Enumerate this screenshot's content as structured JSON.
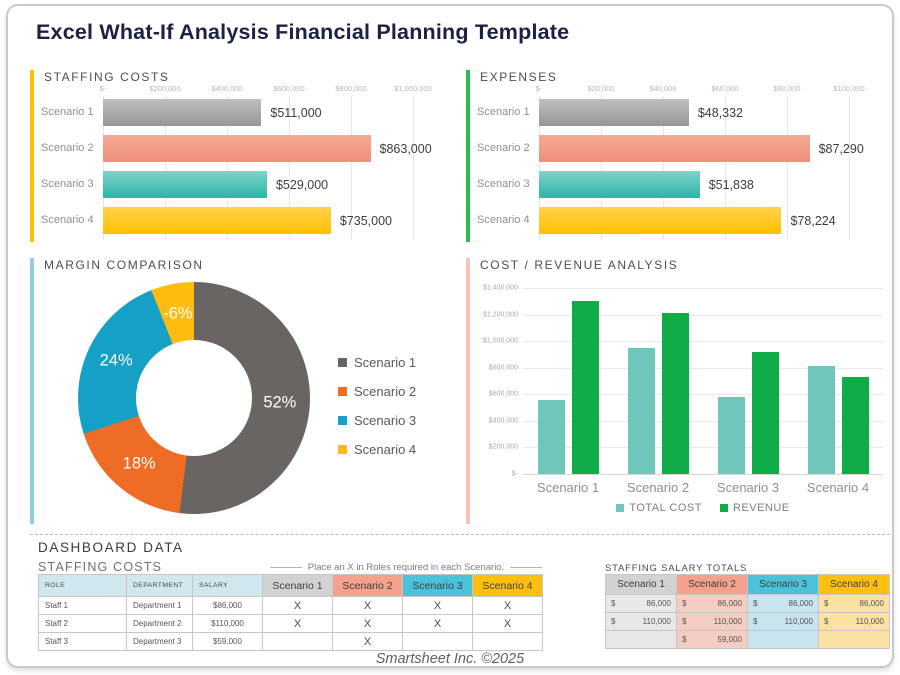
{
  "page_title": "Excel What-If Analysis Financial Planning Template",
  "footer_text": "Smartsheet Inc. ©2025",
  "colors": {
    "accent_staffing": "#ffc000",
    "accent_expenses": "#2eb84d",
    "accent_margin": "#8fcfdc",
    "accent_costrev": "#f8c3b4",
    "bar_gradients": [
      [
        "#c1bfbe",
        "#989595"
      ],
      [
        "#f4a895",
        "#ee8f7a"
      ],
      [
        "#7dd4c9",
        "#2cb4a7"
      ],
      [
        "#ffd24d",
        "#fec000"
      ]
    ]
  },
  "chart_data": [
    {
      "id": "staffing_costs",
      "type": "bar",
      "orientation": "horizontal",
      "title": "STAFFING COSTS",
      "categories": [
        "Scenario 1",
        "Scenario 2",
        "Scenario 3",
        "Scenario 4"
      ],
      "values": [
        511000,
        863000,
        529000,
        735000
      ],
      "value_labels": [
        "$511,000",
        "$863,000",
        "$529,000",
        "$735,000"
      ],
      "x_ticks": [
        "$-",
        "$200,000",
        "$400,000",
        "$600,000",
        "$800,000",
        "$1,000,000"
      ],
      "xlim": [
        0,
        1000000
      ],
      "grid": true
    },
    {
      "id": "expenses",
      "type": "bar",
      "orientation": "horizontal",
      "title": "EXPENSES",
      "categories": [
        "Scenario 1",
        "Scenario 2",
        "Scenario 3",
        "Scenario 4"
      ],
      "values": [
        48332,
        87290,
        51838,
        78224
      ],
      "value_labels": [
        "$48,332",
        "$87,290",
        "$51,838",
        "$78,224"
      ],
      "x_ticks": [
        "$-",
        "$20,000",
        "$40,000",
        "$60,000",
        "$80,000",
        "$100,000"
      ],
      "xlim": [
        0,
        100000
      ],
      "grid": true
    },
    {
      "id": "margin_comparison",
      "type": "pie",
      "subtype": "donut",
      "title": "MARGIN COMPARISON",
      "labels": [
        "Scenario 1",
        "Scenario 2",
        "Scenario 3",
        "Scenario 4"
      ],
      "values_pct": [
        52,
        18,
        24,
        -6
      ],
      "slice_labels": [
        "52%",
        "18%",
        "24%",
        "-6%"
      ],
      "slice_colors": [
        "#696562",
        "#ee6c23",
        "#16a0c5",
        "#fdbd10"
      ],
      "legend_position": "right"
    },
    {
      "id": "cost_revenue",
      "type": "bar",
      "orientation": "vertical",
      "title": "COST / REVENUE ANALYSIS",
      "categories": [
        "Scenario 1",
        "Scenario 2",
        "Scenario 3",
        "Scenario 4"
      ],
      "series": [
        {
          "name": "TOTAL COST",
          "color": "#6fc6ba",
          "values": [
            560000,
            950000,
            580000,
            815000
          ]
        },
        {
          "name": "REVENUE",
          "color": "#10ac47",
          "values": [
            1300000,
            1215000,
            920000,
            730000
          ]
        }
      ],
      "y_ticks": [
        "$-",
        "$200,000",
        "$400,000",
        "$600,000",
        "$800,000",
        "$1,000,000",
        "$1,200,000",
        "$1,400,000"
      ],
      "ylim": [
        0,
        1400000
      ],
      "grid": true,
      "legend_position": "bottom"
    }
  ],
  "dashboard": {
    "heading": "DASHBOARD DATA",
    "staffing_table": {
      "title": "STAFFING COSTS",
      "note": "Place an X in Roles required in each Scenario.",
      "plain_headers": [
        "ROLE",
        "DEPARTMENT",
        "SALARY"
      ],
      "scenario_headers": [
        "Scenario 1",
        "Scenario 2",
        "Scenario 3",
        "Scenario 4"
      ],
      "scenario_header_colors": [
        "#d2d2d2",
        "#f4a28e",
        "#4cc2da",
        "#fdc010"
      ],
      "rows": [
        {
          "role": "Staff 1",
          "department": "Department 1",
          "salary": "$86,000",
          "marks": [
            "X",
            "X",
            "X",
            "X"
          ]
        },
        {
          "role": "Staff 2",
          "department": "Department 2",
          "salary": "$110,000",
          "marks": [
            "X",
            "X",
            "X",
            "X"
          ]
        },
        {
          "role": "Staff 3",
          "department": "Department 3",
          "salary": "$59,000",
          "marks": [
            "",
            "X",
            "",
            ""
          ]
        }
      ]
    },
    "salary_totals": {
      "title": "STAFFING SALARY TOTALS",
      "headers": [
        "Scenario 1",
        "Scenario 2",
        "Scenario 3",
        "Scenario 4"
      ],
      "header_colors": [
        "#d2d2d2",
        "#f4a28e",
        "#4cc2da",
        "#fdc010"
      ],
      "cell_tints": [
        "#e9e8e7",
        "#f6cdc3",
        "#c8e4ef",
        "#fae2a2"
      ],
      "currency_symbol": "$",
      "rows": [
        [
          "86,000",
          "86,000",
          "86,000",
          "86,000"
        ],
        [
          "110,000",
          "110,000",
          "110,000",
          "110,000"
        ],
        [
          "",
          "59,000",
          "",
          ""
        ]
      ]
    }
  }
}
